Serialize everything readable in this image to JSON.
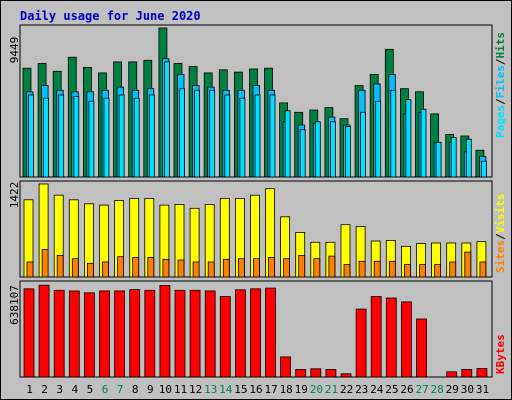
{
  "chart_data": {
    "type": "bar",
    "title": "Daily usage for June 2020",
    "days": [
      "1",
      "2",
      "3",
      "4",
      "5",
      "6",
      "7",
      "8",
      "9",
      "10",
      "11",
      "12",
      "13",
      "14",
      "15",
      "16",
      "17",
      "18",
      "19",
      "20",
      "21",
      "22",
      "23",
      "24",
      "25",
      "26",
      "27",
      "28",
      "29",
      "30",
      "31"
    ],
    "weekend_days": [
      "6",
      "7",
      "13",
      "14",
      "20",
      "21",
      "27",
      "28"
    ],
    "colors": {
      "hits": "#008040",
      "files": "#00c0ff",
      "pages": "#00e0ff",
      "visits": "#ffff00",
      "sites": "#ff8000",
      "kbytes": "#ff0000",
      "weekday_label": "#000000",
      "weekend_label": "#00805c",
      "title": "#0000c0"
    },
    "panels": {
      "hits": {
        "max_label": "9449",
        "ymax": 9449,
        "legend": [
          "Pages",
          "Files",
          "Hits"
        ],
        "legend_separator": "/",
        "series": [
          {
            "name": "Hits",
            "values": [
              6900,
              7200,
              6700,
              7600,
              6950,
              6600,
              7300,
              7300,
              7400,
              9449,
              7200,
              7000,
              6600,
              6800,
              6650,
              6850,
              6900,
              4700,
              4100,
              4250,
              4400,
              3700,
              5800,
              6500,
              8100,
              5600,
              5400,
              4000,
              2700,
              2600,
              1700
            ]
          },
          {
            "name": "Files",
            "values": [
              5400,
              5800,
              5500,
              5400,
              5400,
              5500,
              5700,
              5500,
              5600,
              7500,
              6500,
              5800,
              5700,
              5500,
              5500,
              5800,
              5500,
              3500,
              3300,
              3400,
              3800,
              3300,
              5500,
              5900,
              6500,
              4000,
              4100,
              2200,
              2200,
              1600,
              1300
            ]
          },
          {
            "name": "Pages",
            "values": [
              5200,
              5000,
              5200,
              5100,
              4800,
              5000,
              5200,
              5000,
              5200,
              7300,
              5600,
              5500,
              5500,
              5200,
              5000,
              5200,
              5200,
              4200,
              3000,
              3500,
              3500,
              3200,
              4100,
              4800,
              5500,
              4900,
              4300,
              2200,
              2500,
              2400,
              1000
            ]
          }
        ]
      },
      "visits": {
        "max_label": "1422",
        "ymax": 1422,
        "legend": [
          "Sites",
          "Visits"
        ],
        "legend_separator": "/",
        "series": [
          {
            "name": "Visits",
            "values": [
              1180,
              1422,
              1250,
              1180,
              1120,
              1100,
              1170,
              1200,
              1200,
              1100,
              1110,
              1050,
              1110,
              1200,
              1200,
              1250,
              1350,
              920,
              680,
              530,
              530,
              800,
              770,
              550,
              560,
              470,
              510,
              520,
              520,
              520,
              540
            ]
          },
          {
            "name": "Sites",
            "values": [
              230,
              420,
              330,
              280,
              210,
              230,
              310,
              300,
              300,
              270,
              260,
              230,
              230,
              270,
              280,
              280,
              300,
              280,
              330,
              280,
              320,
              190,
              240,
              240,
              240,
              190,
              190,
              190,
              230,
              380,
              230
            ]
          }
        ]
      },
      "kbytes": {
        "max_label": "638107",
        "ymax": 638107,
        "legend": [
          "KBytes"
        ],
        "legend_separator": "",
        "series": [
          {
            "name": "KBytes",
            "values": [
              605000,
              630000,
              595000,
              590000,
              578000,
              591000,
              591000,
              600000,
              595000,
              628000,
              595000,
              595000,
              591000,
              552000,
              598000,
              605000,
              610000,
              138000,
              52000,
              56000,
              52000,
              22000,
              466000,
              552000,
              542000,
              515000,
              398000,
              0,
              36000,
              52000,
              58000
            ]
          }
        ]
      }
    }
  }
}
